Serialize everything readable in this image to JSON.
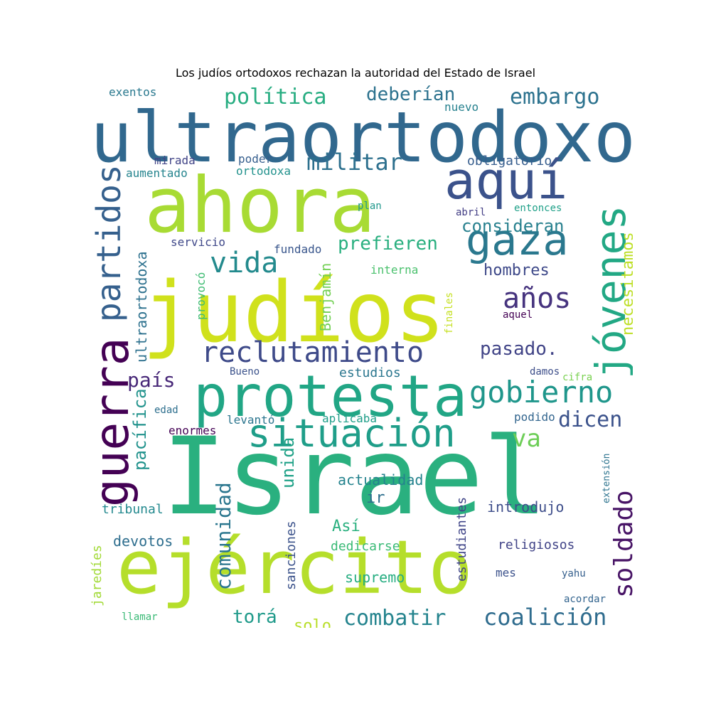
{
  "title": "Los judíos ortodoxos rechazan la autoridad del Estado de Israel",
  "words": [
    {
      "text": "Israel",
      "color": "#2ab07f",
      "size": 150
    },
    {
      "text": "judíos",
      "color": "#d0e11c",
      "size": 118
    },
    {
      "text": "ultraortodoxo",
      "color": "#31688e",
      "size": 98
    },
    {
      "text": "ahora",
      "color": "#a8db34",
      "size": 108
    },
    {
      "text": "ejército",
      "color": "#b5de2b",
      "size": 104
    },
    {
      "text": "protesta",
      "color": "#21a685",
      "size": 80
    },
    {
      "text": "aquí",
      "color": "#3b528b",
      "size": 72
    },
    {
      "text": "guerra",
      "color": "#440154",
      "size": 66
    },
    {
      "text": "situación",
      "color": "#1f9e89",
      "size": 54
    },
    {
      "text": "gaza",
      "color": "#2a788e",
      "size": 60
    },
    {
      "text": "jóvenes",
      "color": "#22a884",
      "size": 58
    },
    {
      "text": "partidos",
      "color": "#35608d",
      "size": 46
    },
    {
      "text": "reclutamiento",
      "color": "#3e4a89",
      "size": 40
    },
    {
      "text": "gobierno",
      "color": "#1f968b",
      "size": 42
    },
    {
      "text": "vida",
      "color": "#238a8d",
      "size": 40
    },
    {
      "text": "años",
      "color": "#46337e",
      "size": 40
    },
    {
      "text": "soldado",
      "color": "#471365",
      "size": 36
    },
    {
      "text": "militar",
      "color": "#2d708e",
      "size": 32
    },
    {
      "text": "política",
      "color": "#27ad81",
      "size": 30
    },
    {
      "text": "embargo",
      "color": "#2c728e",
      "size": 30
    },
    {
      "text": "coalición",
      "color": "#2f6c8e",
      "size": 32
    },
    {
      "text": "combatir",
      "color": "#25848e",
      "size": 30
    },
    {
      "text": "comunidad",
      "color": "#2a768e",
      "size": 28
    },
    {
      "text": "va",
      "color": "#6ece58",
      "size": 34
    },
    {
      "text": "dicen",
      "color": "#3b528b",
      "size": 30
    },
    {
      "text": "país",
      "color": "#482878",
      "size": 28
    },
    {
      "text": "pasado.",
      "color": "#414487",
      "size": 26
    },
    {
      "text": "deberían",
      "color": "#2c728e",
      "size": 26
    },
    {
      "text": "prefieren",
      "color": "#29af7f",
      "size": 26
    },
    {
      "text": "consideran",
      "color": "#27808e",
      "size": 24
    },
    {
      "text": "unida",
      "color": "#1fa187",
      "size": 24
    },
    {
      "text": "pacífica",
      "color": "#20928c",
      "size": 24
    },
    {
      "text": "torá",
      "color": "#1f9a8a",
      "size": 26
    },
    {
      "text": "solo",
      "color": "#b8de29",
      "size": 22
    },
    {
      "text": "necesitamos",
      "color": "#bddf26",
      "size": 22
    },
    {
      "text": "hombres",
      "color": "#3e4989",
      "size": 22
    },
    {
      "text": "ultraortodoxa",
      "color": "#2d718e",
      "size": 20
    },
    {
      "text": "Benjamín",
      "color": "#73d055",
      "size": 20
    },
    {
      "text": "Así",
      "color": "#2ab07f",
      "size": 22
    },
    {
      "text": "ir",
      "color": "#2e6f8e",
      "size": 22
    },
    {
      "text": "supremo",
      "color": "#26ad81",
      "size": 20
    },
    {
      "text": "actualidad",
      "color": "#25838e",
      "size": 20
    },
    {
      "text": "introdujo",
      "color": "#3d4d8a",
      "size": 20
    },
    {
      "text": "estudiantes",
      "color": "#404588",
      "size": 18
    },
    {
      "text": "sanciones",
      "color": "#3b528b",
      "size": 18
    },
    {
      "text": "jaredíes",
      "color": "#a2da37",
      "size": 18
    },
    {
      "text": "devotos",
      "color": "#2e6e8e",
      "size": 20
    },
    {
      "text": "dedicarse",
      "color": "#3aba76",
      "size": 18
    },
    {
      "text": "religiosos",
      "color": "#404387",
      "size": 18
    },
    {
      "text": "tribunal",
      "color": "#23898e",
      "size": 18
    },
    {
      "text": "obligatorio",
      "color": "#365d8d",
      "size": 18
    },
    {
      "text": "mirada",
      "color": "#414487",
      "size": 16
    },
    {
      "text": "poder",
      "color": "#355e8d",
      "size": 16
    },
    {
      "text": "ortodoxa",
      "color": "#21918c",
      "size": 16
    },
    {
      "text": "aumentado",
      "color": "#25848e",
      "size": 16
    },
    {
      "text": "nuevo",
      "color": "#26818e",
      "size": 16
    },
    {
      "text": "exentos",
      "color": "#29788e",
      "size": 16
    },
    {
      "text": "estudios",
      "color": "#2a768e",
      "size": 18
    },
    {
      "text": "interna",
      "color": "#4ac16d",
      "size": 16
    },
    {
      "text": "fundado",
      "color": "#39568c",
      "size": 16
    },
    {
      "text": "servicio",
      "color": "#3f4889",
      "size": 16
    },
    {
      "text": "provocó",
      "color": "#3fbc73",
      "size": 16
    },
    {
      "text": "levantó",
      "color": "#2b758e",
      "size": 16
    },
    {
      "text": "aplicaba",
      "color": "#1f9e89",
      "size": 16
    },
    {
      "text": "enormes",
      "color": "#440154",
      "size": 16
    },
    {
      "text": "podido",
      "color": "#32658e",
      "size": 16
    },
    {
      "text": "damos",
      "color": "#3d4e8a",
      "size": 14
    },
    {
      "text": "cifra",
      "color": "#7ad151",
      "size": 14
    },
    {
      "text": "aquel",
      "color": "#440154",
      "size": 14
    },
    {
      "text": "mes",
      "color": "#3b518b",
      "size": 16
    },
    {
      "text": "yahu",
      "color": "#355f8d",
      "size": 14
    },
    {
      "text": "acordar",
      "color": "#32648e",
      "size": 14
    },
    {
      "text": "llamar",
      "color": "#3aba76",
      "size": 14
    },
    {
      "text": "entonces",
      "color": "#1fa088",
      "size": 14
    },
    {
      "text": "abril",
      "color": "#433e85",
      "size": 14
    },
    {
      "text": "edad",
      "color": "#2e6f8e",
      "size": 14
    },
    {
      "text": "Bueno",
      "color": "#3b528b",
      "size": 14
    },
    {
      "text": "plan",
      "color": "#1f978b",
      "size": 14
    },
    {
      "text": "finales",
      "color": "#c5e021",
      "size": 14
    },
    {
      "text": "extensión",
      "color": "#2c738e",
      "size": 13
    }
  ]
}
